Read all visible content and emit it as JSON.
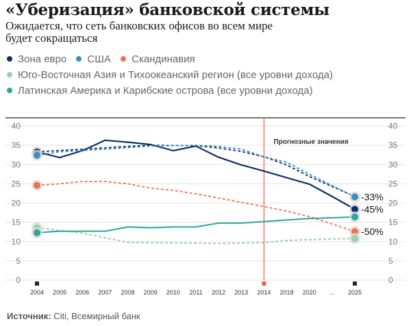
{
  "title": "«Уберизация» банковской системы",
  "subtitle": "Ожидается, что сеть банковских офисов во всем мире будет сокращаться",
  "legend": [
    {
      "label": "Зона евро",
      "color": "#0d2f66"
    },
    {
      "label": "США",
      "color": "#3a8ec2"
    },
    {
      "label": "Скандинавия",
      "color": "#f2704f"
    },
    {
      "label": "Юго-Восточная Азия и Тихоокеанский регион (все уровни дохода)",
      "color": "#98d2a8"
    },
    {
      "label": "Латинская Америка и Карибские острова (все уровни дохода)",
      "color": "#2ba69a"
    }
  ],
  "source": {
    "label": "Источник:",
    "text": "Citi, Всемирный банк"
  },
  "chart_data": {
    "type": "line",
    "ylim": [
      0,
      40
    ],
    "y_ticks": [
      0,
      5,
      10,
      15,
      20,
      25,
      30,
      35,
      40
    ],
    "categories": [
      "2004",
      "2005",
      "2006",
      "2007",
      "2008",
      "2009",
      "2010",
      "2011",
      "2012",
      "2013",
      "2014",
      "2018",
      "2020",
      "...",
      "2025"
    ],
    "forecast_label": "Прогнозные значения",
    "forecast_start": "2014",
    "grid": true,
    "series": [
      {
        "name": "Зона евро",
        "color": "#0d2f66",
        "actual": [
          33.3,
          31.8,
          33.6,
          36.3,
          35.8,
          35.2,
          33.6,
          34.8,
          31.9,
          29.9,
          28.3,
          26.6,
          24.9,
          21.7,
          18.4
        ],
        "trend": [
          33.3,
          34.0,
          34.7,
          35.0,
          34.9,
          34.3,
          33.4,
          32.0,
          29.9,
          26.9,
          21.7
        ],
        "trend_x": [
          0,
          2,
          4,
          5,
          7,
          8,
          9,
          10,
          11,
          12,
          14
        ],
        "change_label": "-45%"
      },
      {
        "name": "США",
        "color": "#3a8ec2",
        "actual": null,
        "trend": [
          32.4,
          33.3,
          34.0,
          34.8,
          35.0,
          34.7,
          34.0,
          32.0,
          30.6,
          27.5,
          21.6
        ],
        "trend_x": [
          0,
          1,
          3,
          5,
          7,
          8,
          9,
          10,
          11,
          12,
          14
        ],
        "change_label": "-33%"
      },
      {
        "name": "Скандинавия",
        "color": "#f2704f",
        "actual": null,
        "trend": [
          24.6,
          25.0,
          25.6,
          25.6,
          25.0,
          23.9,
          23.3,
          22.4,
          19.1,
          17.9,
          16.5,
          12.6
        ],
        "trend_x": [
          0,
          1,
          2,
          3,
          4,
          5,
          6,
          7,
          10,
          11,
          12,
          14
        ],
        "change_label": "-50%"
      },
      {
        "name": "Юго-Восточная Азия и Тихоокеанский регион (все уровни дохода)",
        "color": "#98d2a8",
        "actual": null,
        "trend": [
          13.6,
          12.2,
          11.0,
          9.8,
          9.7,
          9.6,
          9.5,
          9.7,
          10.3,
          10.5,
          10.7,
          10.8
        ],
        "trend_x": [
          0,
          2,
          3,
          4,
          5,
          7,
          8,
          10,
          11,
          12,
          13,
          14
        ],
        "change_label": ""
      },
      {
        "name": "Латинская Америка и Карибские острова (все уровни дохода)",
        "color": "#2ba69a",
        "actual": null,
        "trend": [
          12.3,
          12.7,
          12.7,
          12.7,
          13.8,
          13.6,
          13.8,
          13.8,
          14.8,
          14.8,
          15.2,
          15.6,
          16.0,
          16.4
        ],
        "trend_x": [
          0,
          1,
          2,
          3,
          4,
          5,
          6,
          7,
          8,
          9,
          10,
          11,
          12,
          14
        ],
        "change_label": ""
      }
    ]
  }
}
